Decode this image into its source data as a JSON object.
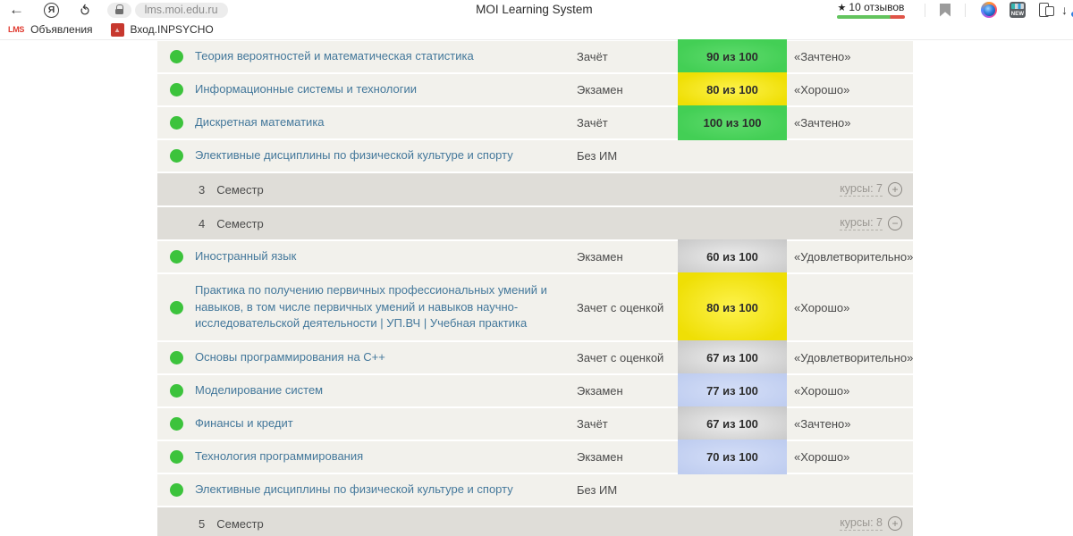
{
  "browser": {
    "url": "lms.moi.edu.ru",
    "page_title": "MOI Learning System",
    "icons": {
      "back": "←",
      "refresh": "⟳",
      "yandex": "Я",
      "star": "★",
      "download": "↓",
      "triangle": "▲",
      "new_badge": "NEW"
    },
    "reviews_label": "10 отзывов",
    "bookmarks": [
      {
        "favicon_text": "LMS",
        "label": "Объявления"
      },
      {
        "favicon_text": "▲",
        "label": "Вход.INPSYCHO"
      }
    ]
  },
  "colors": {
    "green_cell": "radial-gradient(ellipse at center, #5eda6c 0%, #43cf55 75%)",
    "yellow_cell": "radial-gradient(ellipse at center, #fdf24c 0%, #efdf05 80%)",
    "gray_cell": "radial-gradient(ellipse at center, #ededed 0%, #c9c9c9 95%)",
    "blue_cell": "radial-gradient(ellipse at center, #d4def7 0%, #bfcdf0 90%)",
    "status_dot": "#3cc33c",
    "link_blue": "#44789b"
  },
  "table": {
    "rows": [
      {
        "kind": "course",
        "name": "Теория вероятностей и математическая статистика",
        "control": "Зачёт",
        "score": "90 из 100",
        "score_color": "green",
        "result": "«Зачтено»"
      },
      {
        "kind": "course",
        "name": "Информационные системы и технологии",
        "control": "Экзамен",
        "score": "80 из 100",
        "score_color": "yellow",
        "result": "«Хорошо»"
      },
      {
        "kind": "course",
        "name": "Дискретная математика",
        "control": "Зачёт",
        "score": "100 из 100",
        "score_color": "green",
        "result": "«Зачтено»"
      },
      {
        "kind": "course",
        "name": "Элективные дисциплины по физической культуре и спорту",
        "control": "Без ИМ",
        "score": "",
        "score_color": "",
        "result": ""
      },
      {
        "kind": "semester",
        "number": "3",
        "label": "Семестр",
        "courses_link": "курсы: 7",
        "toggle": "+"
      },
      {
        "kind": "semester",
        "number": "4",
        "label": "Семестр",
        "courses_link": "курсы: 7",
        "toggle": "−"
      },
      {
        "kind": "course",
        "name": "Иностранный язык",
        "control": "Экзамен",
        "score": "60 из 100",
        "score_color": "gray",
        "result": "«Удовлетворительно»"
      },
      {
        "kind": "course",
        "tall": true,
        "name": "Практика по получению первичных профессиональных умений и навыков, в том числе первичных умений и навыков научно-исследовательской деятельности | УП.ВЧ | Учебная практика",
        "control": "Зачет с оценкой",
        "score": "80 из 100",
        "score_color": "yellow",
        "result": "«Хорошо»"
      },
      {
        "kind": "course",
        "name": "Основы программирования на C++",
        "control": "Зачет с оценкой",
        "score": "67 из 100",
        "score_color": "gray",
        "result": "«Удовлетворительно»"
      },
      {
        "kind": "course",
        "name": "Моделирование систем",
        "control": "Экзамен",
        "score": "77 из 100",
        "score_color": "blue",
        "result": "«Хорошо»"
      },
      {
        "kind": "course",
        "name": "Финансы и кредит",
        "control": "Зачёт",
        "score": "67 из 100",
        "score_color": "gray",
        "result": "«Зачтено»"
      },
      {
        "kind": "course",
        "name": "Технология программирования",
        "control": "Экзамен",
        "score": "70 из 100",
        "score_color": "blue",
        "result": "«Хорошо»"
      },
      {
        "kind": "course",
        "name": "Элективные дисциплины по физической культуре и спорту",
        "control": "Без ИМ",
        "score": "",
        "score_color": "",
        "result": ""
      },
      {
        "kind": "semester",
        "number": "5",
        "label": "Семестр",
        "courses_link": "курсы: 8",
        "toggle": "+"
      }
    ]
  }
}
